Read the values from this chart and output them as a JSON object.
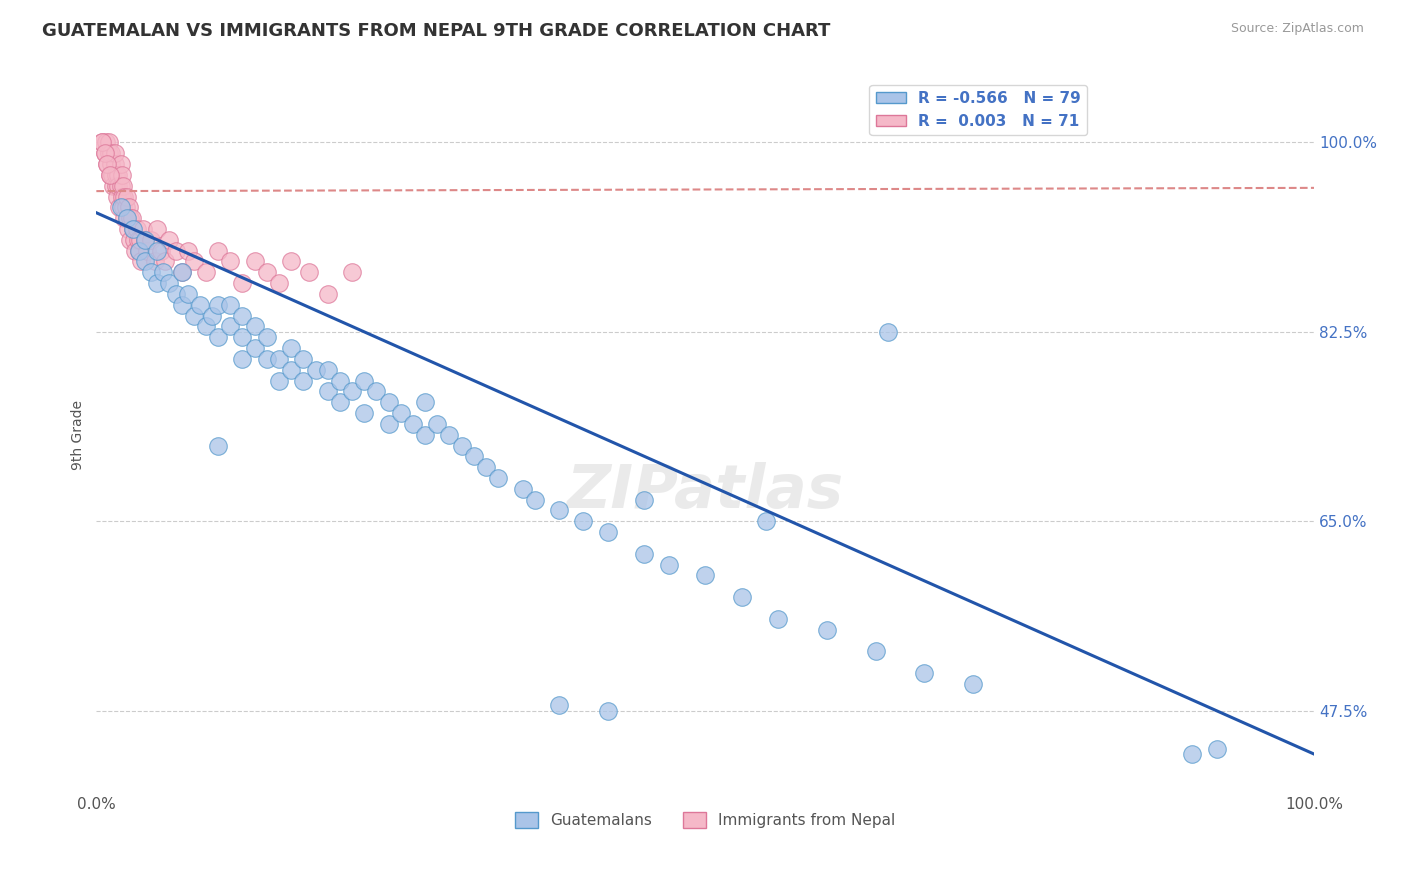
{
  "title": "GUATEMALAN VS IMMIGRANTS FROM NEPAL 9TH GRADE CORRELATION CHART",
  "source": "Source: ZipAtlas.com",
  "ylabel": "9th Grade",
  "ytick_labels": [
    "100.0%",
    "82.5%",
    "65.0%",
    "47.5%"
  ],
  "ytick_vals": [
    1.0,
    0.825,
    0.65,
    0.475
  ],
  "xlim": [
    0.0,
    1.0
  ],
  "ylim": [
    0.4,
    1.06
  ],
  "legend_blue_r": "-0.566",
  "legend_blue_n": "79",
  "legend_pink_r": "0.003",
  "legend_pink_n": "71",
  "blue_color": "#aac4e8",
  "blue_edge_color": "#5599cc",
  "blue_line_color": "#2255aa",
  "pink_color": "#f5b8c8",
  "pink_edge_color": "#dd7799",
  "pink_line_color": "#dd8888",
  "watermark": "ZIPatlas",
  "blue_line_x0": 0.0,
  "blue_line_y0": 0.935,
  "blue_line_x1": 1.0,
  "blue_line_y1": 0.435,
  "pink_line_x0": 0.0,
  "pink_line_y0": 0.955,
  "pink_line_x1": 1.0,
  "pink_line_y1": 0.958,
  "blue_scatter_x": [
    0.02,
    0.025,
    0.03,
    0.035,
    0.04,
    0.04,
    0.045,
    0.05,
    0.05,
    0.055,
    0.06,
    0.065,
    0.07,
    0.07,
    0.075,
    0.08,
    0.085,
    0.09,
    0.095,
    0.1,
    0.1,
    0.11,
    0.11,
    0.12,
    0.12,
    0.12,
    0.13,
    0.13,
    0.14,
    0.14,
    0.15,
    0.15,
    0.16,
    0.16,
    0.17,
    0.17,
    0.18,
    0.19,
    0.19,
    0.2,
    0.2,
    0.21,
    0.22,
    0.22,
    0.23,
    0.24,
    0.24,
    0.25,
    0.26,
    0.27,
    0.27,
    0.28,
    0.29,
    0.3,
    0.31,
    0.32,
    0.33,
    0.35,
    0.36,
    0.38,
    0.4,
    0.42,
    0.45,
    0.47,
    0.5,
    0.53,
    0.56,
    0.6,
    0.64,
    0.68,
    0.72,
    0.45,
    0.55,
    0.65,
    0.9,
    0.92,
    0.38,
    0.42,
    0.1
  ],
  "blue_scatter_y": [
    0.94,
    0.93,
    0.92,
    0.9,
    0.91,
    0.89,
    0.88,
    0.9,
    0.87,
    0.88,
    0.87,
    0.86,
    0.88,
    0.85,
    0.86,
    0.84,
    0.85,
    0.83,
    0.84,
    0.85,
    0.82,
    0.83,
    0.85,
    0.82,
    0.84,
    0.8,
    0.81,
    0.83,
    0.8,
    0.82,
    0.8,
    0.78,
    0.79,
    0.81,
    0.78,
    0.8,
    0.79,
    0.77,
    0.79,
    0.78,
    0.76,
    0.77,
    0.78,
    0.75,
    0.77,
    0.76,
    0.74,
    0.75,
    0.74,
    0.76,
    0.73,
    0.74,
    0.73,
    0.72,
    0.71,
    0.7,
    0.69,
    0.68,
    0.67,
    0.66,
    0.65,
    0.64,
    0.62,
    0.61,
    0.6,
    0.58,
    0.56,
    0.55,
    0.53,
    0.51,
    0.5,
    0.67,
    0.65,
    0.825,
    0.435,
    0.44,
    0.48,
    0.475,
    0.72
  ],
  "pink_scatter_x": [
    0.005,
    0.007,
    0.008,
    0.009,
    0.01,
    0.01,
    0.011,
    0.012,
    0.012,
    0.013,
    0.014,
    0.015,
    0.015,
    0.016,
    0.016,
    0.017,
    0.018,
    0.018,
    0.019,
    0.02,
    0.02,
    0.021,
    0.021,
    0.022,
    0.022,
    0.023,
    0.023,
    0.024,
    0.025,
    0.025,
    0.026,
    0.027,
    0.028,
    0.028,
    0.029,
    0.03,
    0.031,
    0.032,
    0.033,
    0.034,
    0.035,
    0.036,
    0.037,
    0.038,
    0.04,
    0.042,
    0.045,
    0.048,
    0.05,
    0.053,
    0.056,
    0.06,
    0.065,
    0.07,
    0.075,
    0.08,
    0.09,
    0.1,
    0.11,
    0.12,
    0.13,
    0.14,
    0.15,
    0.16,
    0.175,
    0.19,
    0.21,
    0.005,
    0.007,
    0.009,
    0.011
  ],
  "pink_scatter_y": [
    1.0,
    0.99,
    1.0,
    0.98,
    0.99,
    1.0,
    0.97,
    0.98,
    0.99,
    0.97,
    0.96,
    0.98,
    0.99,
    0.96,
    0.97,
    0.95,
    0.97,
    0.96,
    0.94,
    0.96,
    0.98,
    0.95,
    0.97,
    0.94,
    0.96,
    0.93,
    0.95,
    0.94,
    0.93,
    0.95,
    0.92,
    0.94,
    0.93,
    0.91,
    0.93,
    0.92,
    0.91,
    0.9,
    0.92,
    0.91,
    0.9,
    0.91,
    0.89,
    0.92,
    0.91,
    0.9,
    0.91,
    0.89,
    0.92,
    0.9,
    0.89,
    0.91,
    0.9,
    0.88,
    0.9,
    0.89,
    0.88,
    0.9,
    0.89,
    0.87,
    0.89,
    0.88,
    0.87,
    0.89,
    0.88,
    0.86,
    0.88,
    1.0,
    0.99,
    0.98,
    0.97
  ]
}
